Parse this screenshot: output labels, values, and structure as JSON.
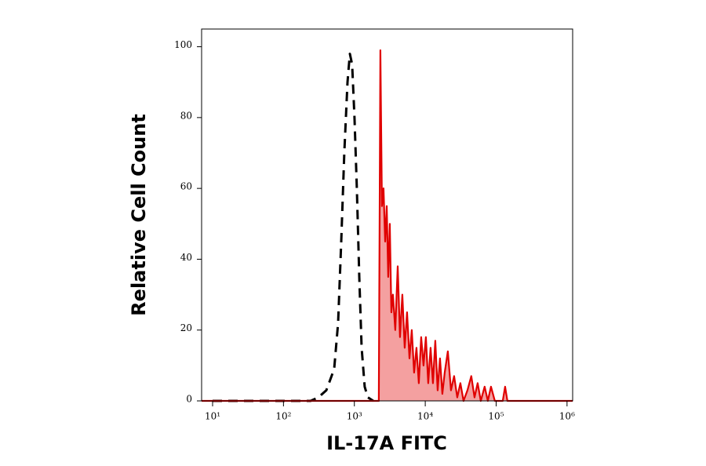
{
  "chart_data": {
    "type": "histogram-overlay",
    "x_label": "IL-17A FITC",
    "y_label": "Relative Cell Count",
    "xscale": "log",
    "xlim": [
      7,
      1200000
    ],
    "ylim": [
      0,
      105
    ],
    "xticks": [
      {
        "value": 10,
        "label": "10¹"
      },
      {
        "value": 100,
        "label": "10²"
      },
      {
        "value": 1000,
        "label": "10³"
      },
      {
        "value": 10000,
        "label": "10⁴"
      },
      {
        "value": 100000,
        "label": "10⁵"
      },
      {
        "value": 1000000,
        "label": "10⁶"
      }
    ],
    "yticks": [
      0,
      20,
      40,
      60,
      80,
      100
    ],
    "series": [
      {
        "color": "#000000",
        "style": "dashed",
        "x": [
          10,
          241,
          311,
          402,
          519,
          589,
          652,
          721,
          800,
          863,
          931,
          1005,
          1084,
          1172,
          1265,
          1400,
          1549,
          1852
        ],
        "values": [
          0,
          0,
          1,
          3,
          9,
          22,
          45,
          70,
          90,
          98,
          95,
          80,
          60,
          35,
          15,
          4,
          1,
          0
        ]
      },
      {
        "color": "#e00000",
        "fill": "#f4a0a0",
        "style": "solid",
        "x": [
          7,
          2213,
          2328,
          2449,
          2581,
          2716,
          2858,
          3007,
          3162,
          3327,
          3500,
          3777,
          4083,
          4406,
          4753,
          5129,
          5534,
          5984,
          6457,
          6966,
          7516,
          8110,
          8750,
          9462,
          10210,
          11020,
          11890,
          12830,
          13870,
          14960,
          16140,
          17420,
          18790,
          20840,
          23070,
          25530,
          28250,
          31330,
          34670,
          39360,
          44670,
          49550,
          54830,
          60670,
          68870,
          76380,
          84530,
          95940,
          123800,
          133700,
          144200,
          1200000
        ],
        "values": [
          0,
          0,
          99,
          55,
          60,
          45,
          55,
          35,
          50,
          25,
          30,
          20,
          38,
          18,
          30,
          15,
          25,
          12,
          20,
          8,
          15,
          5,
          18,
          10,
          18,
          5,
          15,
          5,
          17,
          3,
          12,
          2,
          8,
          14,
          3,
          7,
          1,
          5,
          0,
          3,
          7,
          1,
          5,
          0,
          4,
          0,
          4,
          0,
          0,
          4,
          0,
          0
        ]
      }
    ]
  }
}
